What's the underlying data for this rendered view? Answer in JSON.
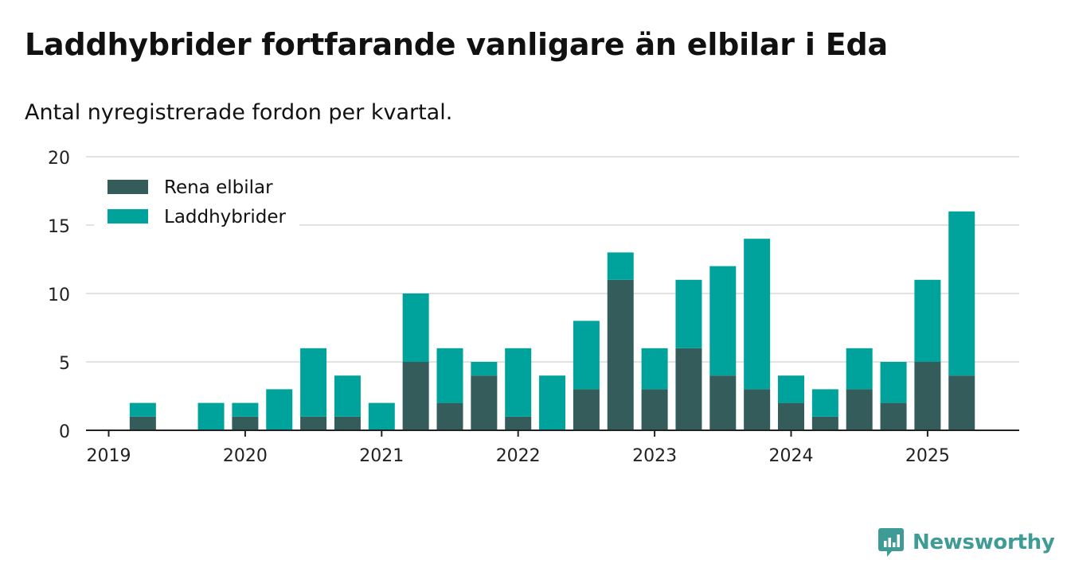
{
  "title": "Laddhybrider fortfarande vanligare än elbilar i Eda",
  "subtitle": "Antal nyregistrerade fordon per kvartal.",
  "brand": "Newsworthy",
  "colors": {
    "rena_elbilar": "#335c5a",
    "laddhybrider": "#00a39b",
    "brand": "#3e9b95",
    "grid": "#d9d9d9"
  },
  "chart_data": {
    "type": "bar",
    "stacked": true,
    "categories": [
      "2019 Q1",
      "2019 Q2",
      "2019 Q3",
      "2019 Q4",
      "2020 Q1",
      "2020 Q2",
      "2020 Q3",
      "2020 Q4",
      "2021 Q1",
      "2021 Q2",
      "2021 Q3",
      "2021 Q4",
      "2022 Q1",
      "2022 Q2",
      "2022 Q3",
      "2022 Q4",
      "2023 Q1",
      "2023 Q2",
      "2023 Q3",
      "2023 Q4",
      "2024 Q1",
      "2024 Q2",
      "2024 Q3",
      "2024 Q4",
      "2025 Q1",
      "2025 Q2"
    ],
    "series": [
      {
        "name": "Rena elbilar",
        "color": "#335c5a",
        "values": [
          0,
          1,
          0,
          0,
          1,
          0,
          1,
          1,
          0,
          5,
          2,
          4,
          1,
          0,
          3,
          11,
          3,
          6,
          4,
          3,
          2,
          1,
          3,
          2,
          5,
          4
        ]
      },
      {
        "name": "Laddhybrider",
        "color": "#00a39b",
        "values": [
          0,
          1,
          0,
          2,
          1,
          3,
          5,
          3,
          2,
          5,
          4,
          1,
          5,
          4,
          5,
          2,
          3,
          5,
          8,
          11,
          2,
          2,
          3,
          3,
          6,
          12
        ]
      }
    ],
    "x_tick_labels": [
      "2019",
      "2020",
      "2021",
      "2022",
      "2023",
      "2024",
      "2025"
    ],
    "y_ticks": [
      0,
      5,
      10,
      15,
      20
    ],
    "ylim": [
      0,
      20
    ],
    "grid": true,
    "legend": "top-left"
  }
}
